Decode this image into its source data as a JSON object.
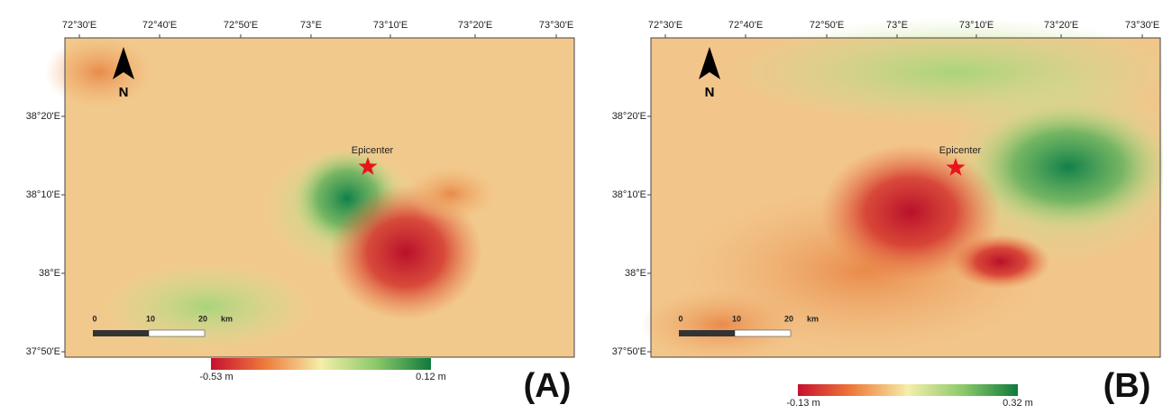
{
  "panels": [
    {
      "label": "(A)",
      "top_ticks": [
        "72°30'E",
        "72°40'E",
        "72°50'E",
        "73°E",
        "73°10'E",
        "73°20'E",
        "73°30'E"
      ],
      "left_ticks": [
        "38°20'E",
        "38°10'E",
        "38°E",
        "37°50'E"
      ],
      "north": "N",
      "epicenter": "Epicenter",
      "scale": [
        "0",
        "10",
        "20",
        "km"
      ],
      "colorbar_min": "-0.53 m",
      "colorbar_max": "0.12 m"
    },
    {
      "label": "(B)",
      "top_ticks": [
        "72°30'E",
        "72°40'E",
        "72°50'E",
        "73°E",
        "73°10'E",
        "73°20'E",
        "73°30'E"
      ],
      "left_ticks": [
        "38°20'E",
        "38°10'E",
        "38°E",
        "37°50'E"
      ],
      "north": "N",
      "epicenter": "Epicenter",
      "scale": [
        "0",
        "10",
        "20",
        "km"
      ],
      "colorbar_min": "-0.13 m",
      "colorbar_max": "0.32 m"
    }
  ]
}
